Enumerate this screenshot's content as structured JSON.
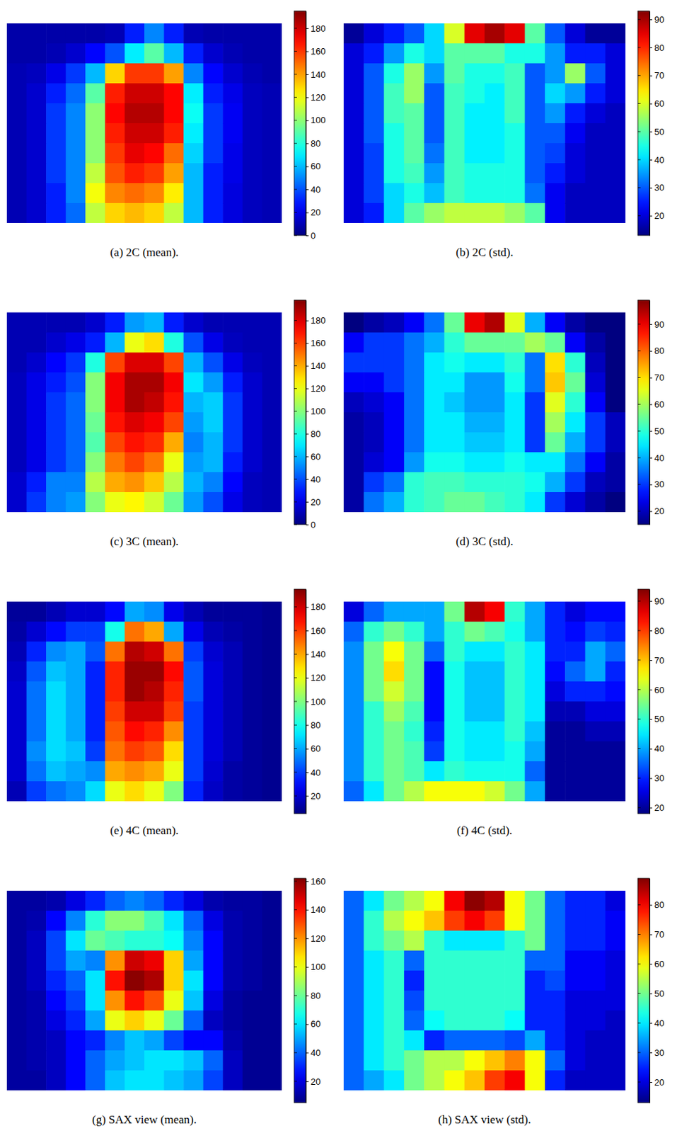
{
  "chart_data": [
    {
      "type": "heatmap",
      "title": "(a) 2C (mean).",
      "tick_labels": false,
      "zlim": [
        0,
        195
      ],
      "zticks": [
        0,
        20,
        40,
        60,
        80,
        100,
        120,
        140,
        160,
        180
      ],
      "z": [
        [
          8,
          8,
          8,
          8,
          8,
          10,
          30,
          50,
          30,
          10,
          8,
          8,
          8,
          8
        ],
        [
          8,
          8,
          10,
          15,
          25,
          40,
          70,
          90,
          60,
          30,
          15,
          10,
          8,
          8
        ],
        [
          10,
          12,
          20,
          35,
          60,
          130,
          160,
          160,
          140,
          50,
          25,
          15,
          10,
          8
        ],
        [
          10,
          15,
          30,
          45,
          90,
          165,
          180,
          180,
          170,
          70,
          30,
          20,
          12,
          10
        ],
        [
          10,
          15,
          35,
          50,
          100,
          170,
          185,
          185,
          170,
          75,
          35,
          22,
          12,
          10
        ],
        [
          10,
          15,
          35,
          50,
          100,
          165,
          180,
          180,
          165,
          70,
          35,
          22,
          12,
          10
        ],
        [
          10,
          15,
          35,
          50,
          100,
          160,
          175,
          170,
          150,
          65,
          35,
          20,
          12,
          10
        ],
        [
          10,
          15,
          35,
          50,
          110,
          155,
          165,
          160,
          140,
          60,
          30,
          20,
          12,
          10
        ],
        [
          10,
          15,
          30,
          50,
          120,
          145,
          150,
          145,
          125,
          60,
          30,
          18,
          12,
          10
        ],
        [
          10,
          15,
          30,
          45,
          110,
          130,
          135,
          130,
          110,
          60,
          30,
          18,
          12,
          10
        ]
      ]
    },
    {
      "type": "heatmap",
      "title": "(b) 2C (std).",
      "tick_labels": false,
      "zlim": [
        13,
        93
      ],
      "zticks": [
        20,
        30,
        40,
        50,
        60,
        70,
        80,
        90
      ],
      "z": [
        [
          15,
          20,
          25,
          30,
          40,
          60,
          85,
          90,
          85,
          50,
          30,
          20,
          15,
          15
        ],
        [
          20,
          25,
          35,
          45,
          40,
          50,
          50,
          50,
          45,
          45,
          35,
          25,
          25,
          20
        ],
        [
          20,
          30,
          45,
          55,
          35,
          50,
          45,
          45,
          48,
          30,
          35,
          55,
          30,
          20
        ],
        [
          20,
          30,
          48,
          55,
          30,
          48,
          45,
          42,
          48,
          30,
          40,
          35,
          25,
          20
        ],
        [
          20,
          30,
          48,
          50,
          30,
          48,
          42,
          42,
          48,
          30,
          35,
          25,
          20,
          18
        ],
        [
          20,
          30,
          45,
          50,
          30,
          48,
          42,
          42,
          45,
          30,
          30,
          22,
          18,
          18
        ],
        [
          20,
          28,
          45,
          50,
          32,
          48,
          42,
          42,
          45,
          30,
          28,
          20,
          18,
          18
        ],
        [
          20,
          28,
          45,
          48,
          35,
          48,
          45,
          45,
          45,
          30,
          25,
          20,
          18,
          18
        ],
        [
          20,
          28,
          40,
          45,
          38,
          48,
          45,
          45,
          45,
          32,
          22,
          18,
          18,
          18
        ],
        [
          20,
          25,
          40,
          50,
          55,
          58,
          58,
          58,
          55,
          50,
          22,
          18,
          18,
          18
        ]
      ]
    },
    {
      "type": "heatmap",
      "title": "(c) 3C (mean).",
      "tick_labels": false,
      "zlim": [
        0,
        198
      ],
      "zticks": [
        0,
        20,
        40,
        60,
        80,
        100,
        120,
        140,
        160,
        180
      ],
      "z": [
        [
          10,
          10,
          10,
          10,
          15,
          30,
          55,
          60,
          30,
          15,
          10,
          10,
          10,
          10
        ],
        [
          10,
          10,
          15,
          20,
          30,
          60,
          120,
          130,
          80,
          40,
          20,
          12,
          10,
          10
        ],
        [
          10,
          15,
          25,
          35,
          80,
          160,
          180,
          180,
          160,
          60,
          40,
          20,
          12,
          10
        ],
        [
          12,
          20,
          30,
          40,
          100,
          175,
          190,
          190,
          175,
          70,
          55,
          30,
          15,
          10
        ],
        [
          12,
          20,
          35,
          45,
          100,
          175,
          190,
          185,
          170,
          60,
          65,
          35,
          15,
          10
        ],
        [
          12,
          20,
          35,
          45,
          95,
          170,
          180,
          175,
          160,
          55,
          65,
          35,
          15,
          10
        ],
        [
          12,
          20,
          35,
          45,
          90,
          160,
          170,
          165,
          140,
          50,
          60,
          35,
          15,
          10
        ],
        [
          12,
          20,
          35,
          45,
          100,
          150,
          160,
          150,
          120,
          55,
          60,
          30,
          15,
          10
        ],
        [
          15,
          30,
          50,
          50,
          110,
          140,
          145,
          135,
          110,
          60,
          50,
          25,
          12,
          10
        ],
        [
          15,
          35,
          50,
          55,
          100,
          120,
          125,
          115,
          95,
          55,
          40,
          20,
          12,
          10
        ]
      ]
    },
    {
      "type": "heatmap",
      "title": "(d) 3C (std).",
      "tick_labels": false,
      "zlim": [
        15,
        99
      ],
      "zticks": [
        20,
        30,
        40,
        50,
        60,
        70,
        80,
        90
      ],
      "z": [
        [
          15,
          18,
          20,
          25,
          35,
          55,
          90,
          95,
          65,
          40,
          25,
          18,
          15,
          15
        ],
        [
          25,
          30,
          30,
          35,
          40,
          50,
          55,
          55,
          55,
          60,
          55,
          25,
          18,
          15
        ],
        [
          30,
          30,
          30,
          35,
          45,
          48,
          45,
          45,
          50,
          35,
          70,
          50,
          20,
          15
        ],
        [
          25,
          25,
          30,
          35,
          45,
          45,
          38,
          38,
          48,
          35,
          72,
          55,
          22,
          15
        ],
        [
          20,
          22,
          25,
          35,
          45,
          42,
          38,
          38,
          45,
          30,
          65,
          50,
          25,
          15
        ],
        [
          18,
          20,
          25,
          35,
          45,
          45,
          40,
          40,
          45,
          30,
          60,
          45,
          30,
          20
        ],
        [
          18,
          20,
          25,
          35,
          45,
          45,
          42,
          42,
          45,
          30,
          55,
          40,
          30,
          20
        ],
        [
          18,
          22,
          25,
          38,
          48,
          48,
          45,
          45,
          48,
          45,
          45,
          35,
          25,
          18
        ],
        [
          18,
          30,
          35,
          50,
          52,
          52,
          50,
          50,
          50,
          48,
          40,
          30,
          20,
          18
        ],
        [
          18,
          35,
          40,
          50,
          52,
          55,
          55,
          52,
          50,
          45,
          30,
          22,
          18,
          15
        ]
      ]
    },
    {
      "type": "heatmap",
      "title": "(e) 4C (mean).",
      "tick_labels": false,
      "zlim": [
        5,
        195
      ],
      "zticks": [
        20,
        40,
        60,
        80,
        100,
        120,
        140,
        160,
        180
      ],
      "z": [
        [
          10,
          10,
          15,
          20,
          20,
          30,
          60,
          55,
          25,
          15,
          10,
          10,
          10,
          8
        ],
        [
          12,
          20,
          30,
          40,
          40,
          80,
          150,
          140,
          60,
          25,
          15,
          12,
          10,
          8
        ],
        [
          15,
          35,
          55,
          60,
          45,
          150,
          185,
          180,
          150,
          40,
          20,
          15,
          10,
          8
        ],
        [
          18,
          45,
          65,
          60,
          35,
          165,
          190,
          190,
          170,
          45,
          22,
          15,
          10,
          8
        ],
        [
          20,
          50,
          70,
          60,
          35,
          165,
          190,
          185,
          165,
          45,
          22,
          15,
          10,
          8
        ],
        [
          20,
          50,
          70,
          60,
          35,
          160,
          180,
          180,
          160,
          40,
          22,
          15,
          10,
          8
        ],
        [
          20,
          50,
          70,
          60,
          35,
          155,
          170,
          165,
          145,
          40,
          22,
          15,
          10,
          8
        ],
        [
          20,
          55,
          70,
          65,
          40,
          150,
          160,
          155,
          130,
          40,
          22,
          15,
          10,
          8
        ],
        [
          20,
          50,
          65,
          60,
          55,
          140,
          145,
          140,
          120,
          40,
          20,
          12,
          10,
          8
        ],
        [
          15,
          40,
          50,
          55,
          70,
          120,
          130,
          120,
          100,
          35,
          18,
          12,
          10,
          8
        ]
      ]
    },
    {
      "type": "heatmap",
      "title": "(f) 4C (std).",
      "tick_labels": false,
      "zlim": [
        18,
        94
      ],
      "zticks": [
        20,
        30,
        40,
        50,
        60,
        70,
        80,
        90
      ],
      "z": [
        [
          25,
          35,
          40,
          40,
          40,
          55,
          90,
          85,
          50,
          40,
          30,
          25,
          28,
          28
        ],
        [
          35,
          50,
          55,
          50,
          40,
          50,
          55,
          52,
          48,
          40,
          30,
          28,
          32,
          30
        ],
        [
          38,
          55,
          65,
          55,
          35,
          50,
          45,
          45,
          50,
          45,
          30,
          30,
          40,
          35
        ],
        [
          38,
          55,
          68,
          55,
          28,
          48,
          42,
          42,
          50,
          45,
          28,
          35,
          40,
          30
        ],
        [
          38,
          55,
          62,
          55,
          28,
          48,
          42,
          42,
          50,
          45,
          25,
          30,
          30,
          28
        ],
        [
          38,
          50,
          58,
          52,
          28,
          48,
          42,
          42,
          50,
          45,
          22,
          22,
          25,
          25
        ],
        [
          38,
          50,
          55,
          50,
          30,
          48,
          45,
          45,
          50,
          42,
          20,
          20,
          22,
          22
        ],
        [
          38,
          50,
          55,
          52,
          32,
          48,
          45,
          45,
          48,
          40,
          20,
          20,
          20,
          20
        ],
        [
          38,
          50,
          55,
          52,
          45,
          50,
          48,
          48,
          48,
          35,
          20,
          20,
          20,
          20
        ],
        [
          35,
          45,
          55,
          60,
          65,
          65,
          65,
          62,
          55,
          40,
          20,
          20,
          20,
          20
        ]
      ]
    },
    {
      "type": "heatmap",
      "title": "(g) SAX view (mean).",
      "tick_labels": false,
      "zlim": [
        5,
        162
      ],
      "zticks": [
        20,
        40,
        60,
        80,
        100,
        120,
        140,
        160
      ],
      "z": [
        [
          10,
          10,
          12,
          20,
          30,
          40,
          45,
          40,
          30,
          20,
          12,
          10,
          10,
          8
        ],
        [
          10,
          12,
          25,
          45,
          70,
          85,
          85,
          75,
          60,
          40,
          20,
          12,
          10,
          8
        ],
        [
          10,
          15,
          35,
          60,
          80,
          75,
          70,
          70,
          65,
          45,
          25,
          12,
          10,
          8
        ],
        [
          10,
          15,
          35,
          50,
          45,
          120,
          150,
          145,
          110,
          50,
          25,
          12,
          10,
          8
        ],
        [
          10,
          15,
          30,
          40,
          60,
          140,
          160,
          155,
          110,
          60,
          25,
          12,
          10,
          8
        ],
        [
          10,
          12,
          25,
          35,
          60,
          120,
          140,
          130,
          100,
          55,
          20,
          10,
          8,
          8
        ],
        [
          10,
          12,
          20,
          30,
          50,
          100,
          110,
          100,
          80,
          40,
          15,
          10,
          8,
          8
        ],
        [
          10,
          12,
          15,
          25,
          30,
          45,
          55,
          50,
          35,
          25,
          25,
          12,
          8,
          8
        ],
        [
          10,
          12,
          15,
          25,
          40,
          50,
          55,
          60,
          60,
          55,
          40,
          15,
          8,
          8
        ],
        [
          10,
          10,
          15,
          25,
          40,
          55,
          60,
          60,
          55,
          50,
          35,
          15,
          8,
          8
        ]
      ]
    },
    {
      "type": "heatmap",
      "title": "(h) SAX view (std).",
      "tick_labels": false,
      "zlim": [
        13,
        89
      ],
      "zticks": [
        20,
        30,
        40,
        50,
        60,
        70,
        80
      ],
      "z": [
        [
          30,
          40,
          50,
          55,
          60,
          80,
          88,
          85,
          60,
          50,
          30,
          25,
          25,
          20
        ],
        [
          30,
          45,
          55,
          60,
          65,
          75,
          80,
          75,
          60,
          50,
          30,
          25,
          25,
          22
        ],
        [
          30,
          45,
          50,
          55,
          45,
          40,
          40,
          40,
          45,
          50,
          30,
          25,
          25,
          22
        ],
        [
          30,
          40,
          45,
          30,
          45,
          45,
          45,
          45,
          45,
          30,
          30,
          22,
          22,
          20
        ],
        [
          30,
          40,
          45,
          25,
          45,
          45,
          45,
          45,
          45,
          25,
          28,
          22,
          22,
          20
        ],
        [
          30,
          40,
          45,
          28,
          45,
          45,
          45,
          45,
          45,
          25,
          25,
          20,
          20,
          20
        ],
        [
          30,
          40,
          45,
          30,
          42,
          45,
          45,
          45,
          42,
          25,
          25,
          20,
          20,
          18
        ],
        [
          30,
          40,
          45,
          40,
          25,
          30,
          30,
          30,
          28,
          35,
          25,
          20,
          18,
          18
        ],
        [
          30,
          40,
          45,
          50,
          55,
          55,
          60,
          65,
          70,
          60,
          30,
          20,
          18,
          18
        ],
        [
          30,
          35,
          40,
          50,
          55,
          60,
          65,
          75,
          80,
          60,
          25,
          18,
          18,
          18
        ]
      ]
    }
  ]
}
